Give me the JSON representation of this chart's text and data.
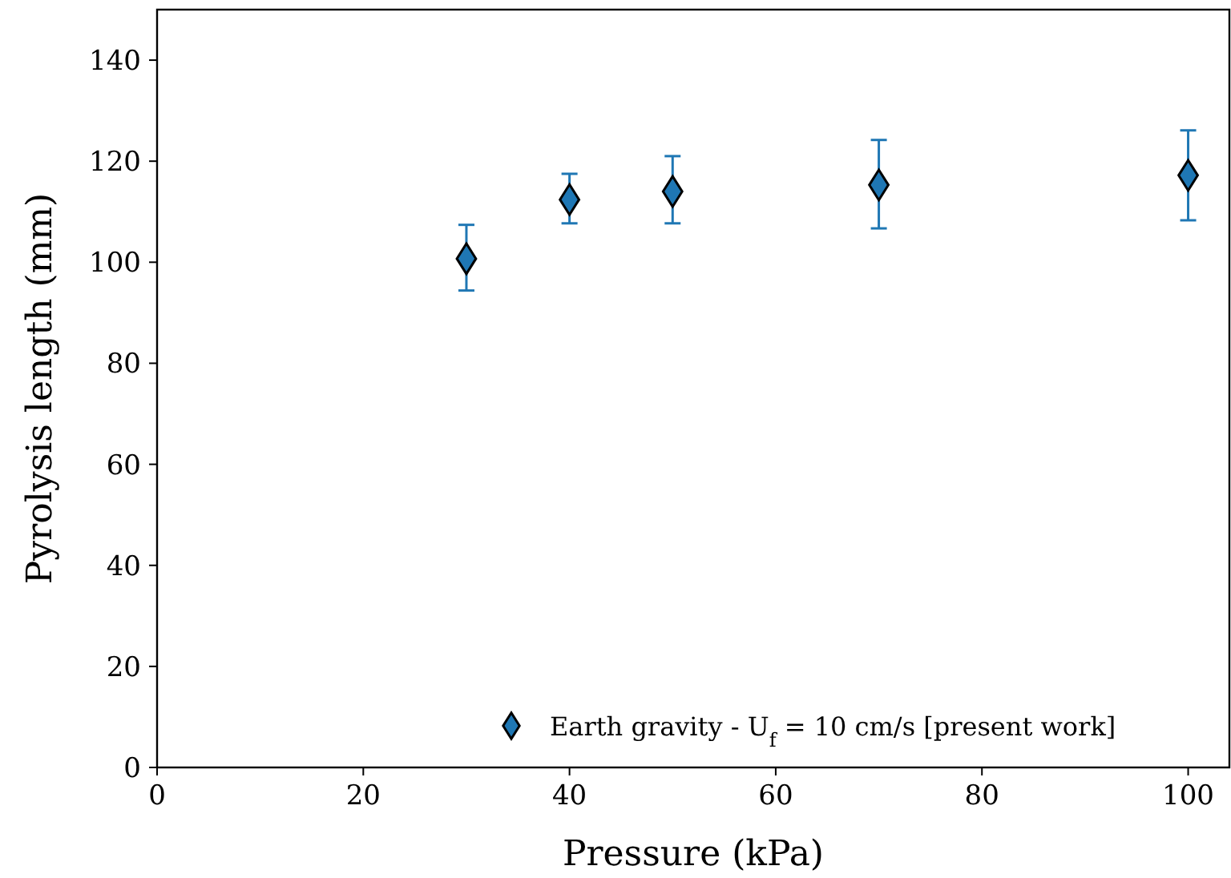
{
  "chart_data": {
    "type": "scatter",
    "xlabel": "Pressure (kPa)",
    "ylabel": "Pyrolysis length (mm)",
    "x": [
      30,
      40,
      50,
      70,
      100
    ],
    "series": [
      {
        "name": "Earth gravity - U$_{f}$ = 10 cm/s [present work]",
        "color": "#1f77b4",
        "values": [
          100.7,
          112.4,
          114.0,
          115.3,
          117.2
        ],
        "errors": [
          [
            94.4,
            107.4
          ],
          [
            107.7,
            117.5
          ],
          [
            107.7,
            121.0
          ],
          [
            106.7,
            124.2
          ],
          [
            108.3,
            126.1
          ]
        ]
      }
    ],
    "xlim": [
      0,
      104
    ],
    "xticks": [
      0,
      20,
      40,
      60,
      80,
      100
    ],
    "ylim": [
      0,
      150
    ],
    "yticks": [
      0,
      20,
      40,
      60,
      80,
      100,
      120,
      140
    ],
    "marker": "diamond",
    "legend": "bottom right",
    "grid": false
  }
}
